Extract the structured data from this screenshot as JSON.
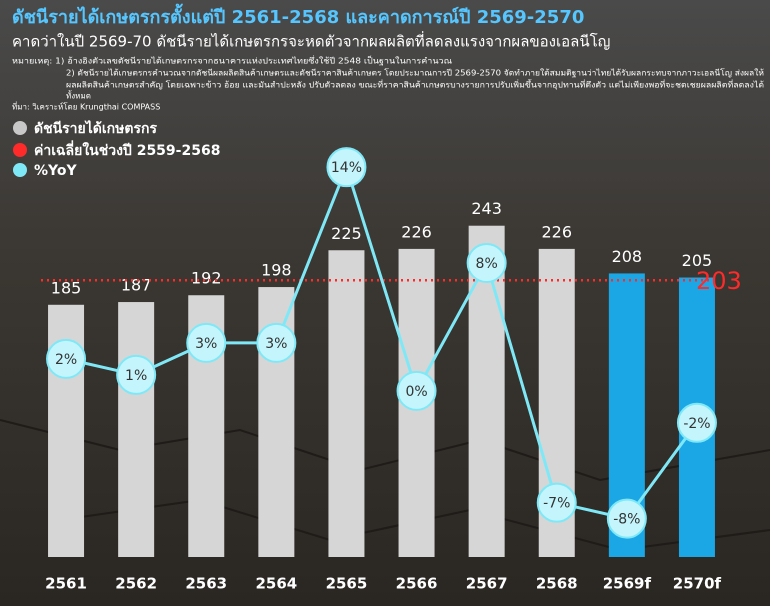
{
  "chart_data": {
    "type": "bar",
    "title": "ดัชนีรายได้เกษตรกรตั้งแต่ปี 2561-2568 และคาดการณ์ปี 2569-2570",
    "subtitle": "คาดว่าในปี 2569-70 ดัชนีรายได้เกษตรกรจะหดตัวจากผลผลิตที่ลดลงแรงจากผลของเอลนีโญ",
    "notes": [
      "หมายเหตุ: 1) อ้างอิงตัวเลขดัชนีรายได้เกษตรกรจากธนาคารแห่งประเทศไทยซึ่งใช้ปี 2548 เป็นฐานในการคำนวณ",
      "2) ดัชนีรายได้เกษตรกรคำนวณจากดัชนีผลผลิตสินค้าเกษตรและดัชนีราคาสินค้าเกษตร โดยประมาณการปี 2569-2570 จัดทำภายใต้สมมติฐานว่าไทยได้รับผลกระทบจากภาวะเอลนีโญ ส่งผลให้",
      "ผลผลิตสินค้าเกษตรสำคัญ โดยเฉพาะข้าว อ้อย และมันสำปะหลัง ปรับตัวลดลง ขณะที่ราคาสินค้าเกษตรบางรายการปรับเพิ่มขึ้นจากอุปทานที่ตึงตัว แต่ไม่เพียงพอที่จะชดเชยผลผลิตที่ลดลงได้",
      "ทั้งหมด"
    ],
    "source": "ที่มา: วิเคราะห์โดย Krungthai COMPASS",
    "categories": [
      "2561",
      "2562",
      "2563",
      "2564",
      "2565",
      "2566",
      "2567",
      "2568",
      "2569f",
      "2570f"
    ],
    "series": [
      {
        "name": "ดัชนีรายได้เกษตรกร",
        "color": "#c8c8c8",
        "colors": [
          "#d6d6d6",
          "#d6d6d6",
          "#d6d6d6",
          "#d6d6d6",
          "#d6d6d6",
          "#d6d6d6",
          "#d6d6d6",
          "#d6d6d6",
          "#1ba7e6",
          "#1ba7e6"
        ],
        "values": [
          185,
          187,
          192,
          198,
          225,
          226,
          243,
          226,
          208,
          205
        ]
      },
      {
        "name": "%YoY",
        "type": "line",
        "axis": "y2",
        "color": "#7fe8f7",
        "values": [
          2,
          1,
          3,
          3,
          14,
          0,
          8,
          -7,
          -8,
          -2
        ],
        "value_labels": [
          "2%",
          "1%",
          "3%",
          "3%",
          "14%",
          "0%",
          "8%",
          "-7%",
          "-8%",
          "-2%"
        ]
      }
    ],
    "average": {
      "name": "ค่าเฉลี่ยในช่วงปี 2559-2568",
      "value": 203,
      "color": "#ff2a2a"
    },
    "ylim": [
      0,
      300
    ],
    "y2lim": [
      -10.4,
      15.2
    ]
  }
}
